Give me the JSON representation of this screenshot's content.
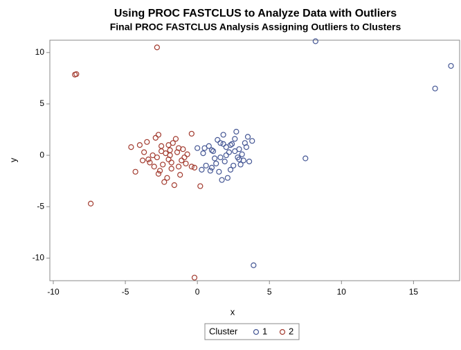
{
  "chart_data": {
    "type": "scatter",
    "title": "Using PROC FASTCLUS to Analyze Data with Outliers",
    "subtitle": "Final PROC FASTCLUS Analysis Assigning Outliers to Clusters",
    "x_label": "x",
    "y_label": "y",
    "legend_title": "Cluster",
    "xlim": [
      -10.24,
      18.2
    ],
    "ylim": [
      -12.2,
      11.2
    ],
    "xticks": [
      -10,
      -5,
      0,
      5,
      10,
      15
    ],
    "yticks": [
      -10,
      -5,
      0,
      5,
      10
    ],
    "grid": false,
    "legend": "bottom",
    "series": [
      {
        "name": "1",
        "color": "#445694",
        "x": [
          8.2,
          17.6,
          16.5,
          7.5,
          3.9,
          0.5,
          0.8,
          1.0,
          1.2,
          1.4,
          1.6,
          1.8,
          2.0,
          2.2,
          2.4,
          2.6,
          2.7,
          2.9,
          3.1,
          3.3,
          3.5,
          3.8,
          3.6,
          3.2,
          3.0,
          2.8,
          2.5,
          2.3,
          2.1,
          1.7,
          1.5,
          1.3,
          1.0,
          0.9,
          0.6,
          0.3,
          0.4,
          1.9,
          2.0,
          2.6,
          3.4,
          1.1,
          1.6,
          2.9,
          0.0,
          1.8,
          2.3
        ],
        "y": [
          11.1,
          8.7,
          6.5,
          -0.3,
          -10.7,
          0.7,
          0.9,
          0.5,
          -0.3,
          1.5,
          1.2,
          2.0,
          0.8,
          0.3,
          1.1,
          1.6,
          2.3,
          0.6,
          0.1,
          1.2,
          1.8,
          1.4,
          -0.6,
          -0.5,
          -0.9,
          -0.2,
          -1.0,
          -1.4,
          -2.2,
          -2.4,
          -1.6,
          -0.8,
          -1.2,
          -1.5,
          -1.0,
          -1.4,
          0.2,
          -0.6,
          0.0,
          0.4,
          0.8,
          0.4,
          -0.2,
          -0.4,
          0.7,
          1.1,
          1.0
        ]
      },
      {
        "name": "2",
        "color": "#A23A2E",
        "x": [
          -2.8,
          -8.4,
          -8.5,
          -7.4,
          -0.2,
          0.2,
          -4.6,
          -4.3,
          -4.0,
          -3.7,
          -3.5,
          -3.3,
          -3.1,
          -2.9,
          -2.7,
          -2.5,
          -2.3,
          -2.1,
          -1.9,
          -1.7,
          -1.5,
          -1.3,
          -1.1,
          -0.9,
          -0.7,
          -0.4,
          -0.2,
          -0.4,
          -1.2,
          -1.6,
          -1.8,
          -2.0,
          -2.2,
          -2.4,
          -2.6,
          -2.8,
          -3.0,
          -3.4,
          -3.8,
          -2.0,
          -1.4,
          -1.0,
          -0.8,
          -2.5,
          -1.8,
          -2.7,
          -1.9,
          -1.3
        ],
        "y": [
          10.5,
          7.9,
          7.85,
          -4.7,
          -11.9,
          -3.0,
          0.8,
          -1.6,
          1.0,
          0.3,
          1.3,
          -0.7,
          0.0,
          1.7,
          2.0,
          0.9,
          -2.6,
          -2.2,
          0.5,
          1.2,
          1.6,
          0.7,
          -0.5,
          -0.2,
          0.1,
          -1.1,
          -1.2,
          2.1,
          -1.9,
          -2.9,
          -1.3,
          -0.4,
          0.2,
          -0.9,
          -1.5,
          -0.2,
          -1.1,
          -0.4,
          -0.5,
          1.0,
          0.3,
          0.6,
          -0.8,
          0.4,
          -0.7,
          -1.8,
          0.0,
          -1.1
        ]
      }
    ]
  }
}
